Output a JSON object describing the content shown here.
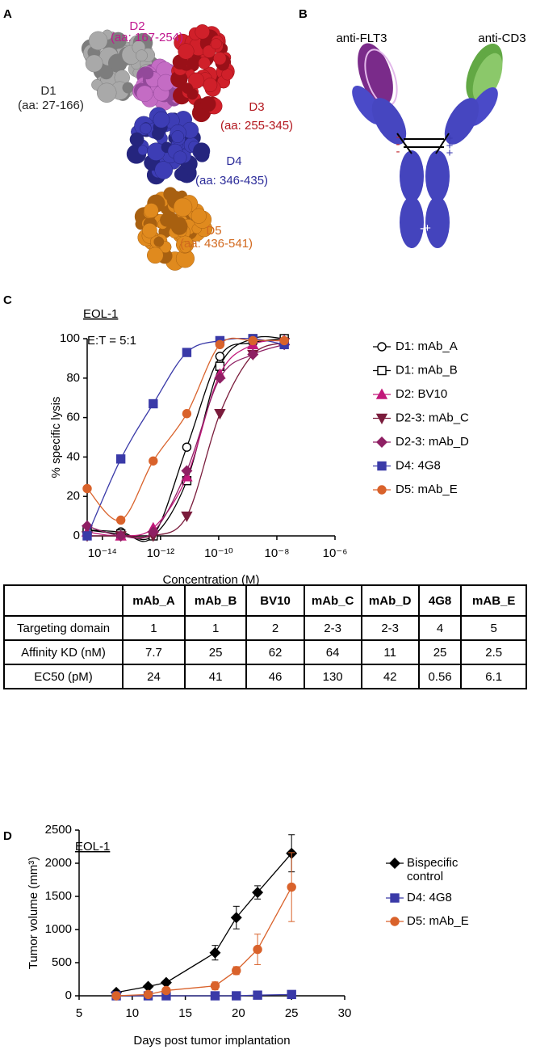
{
  "panel_labels": [
    "A",
    "B",
    "C",
    "D"
  ],
  "panel_a": {
    "domains": [
      {
        "name": "D1",
        "range": "(aa: 27-166)",
        "color": "#222222"
      },
      {
        "name": "D2",
        "range": "(aa: 167-254)",
        "color": "#c0198f"
      },
      {
        "name": "D3",
        "range": "(aa: 255-345)",
        "color": "#b3171e"
      },
      {
        "name": "D4",
        "range": "(aa: 346-435)",
        "color": "#2c2c9a"
      },
      {
        "name": "D5",
        "range": "(aa: 436-541)",
        "color": "#d2691e"
      }
    ]
  },
  "panel_b": {
    "labels": [
      "anti-FLT3",
      "anti-CD3"
    ],
    "negative_charges": [
      "-",
      "-",
      "-"
    ],
    "positive_charges": [
      "+",
      "+",
      "+"
    ],
    "fc_charge": "-+"
  },
  "chart_data": [
    {
      "type": "line",
      "title": "EOL-1",
      "annotation": "E:T = 5:1",
      "xlabel": "Concentration (M)",
      "ylabel": "% specific lysis",
      "xscale": "log",
      "xlim": [
        3e-15,
        1e-06
      ],
      "xticks": [
        {
          "value": 1e-14,
          "label": "10⁻¹⁴"
        },
        {
          "value": 1e-12,
          "label": "10⁻¹²"
        },
        {
          "value": 1e-10,
          "label": "10⁻¹⁰"
        },
        {
          "value": 1e-08,
          "label": "10⁻⁸"
        },
        {
          "value": 1e-06,
          "label": "10⁻⁶"
        }
      ],
      "ylim": [
        0,
        100
      ],
      "yticks": [
        0,
        20,
        40,
        60,
        80,
        100
      ],
      "legend": "right",
      "x": [
        3e-15,
        4.3e-14,
        5.6e-13,
        8e-12,
        1.1e-10,
        1.5e-09,
        1.8e-08
      ],
      "series": [
        {
          "name": "D1: mAb_A",
          "color": "#000000",
          "marker": "circle-open",
          "values": [
            3,
            2,
            0,
            45,
            91,
            98,
            100
          ]
        },
        {
          "name": "D1: mAb_B",
          "color": "#000000",
          "marker": "square-open",
          "values": [
            3,
            1,
            0,
            28,
            86,
            100,
            100
          ]
        },
        {
          "name": "D2: BV10",
          "color": "#c2187a",
          "marker": "triangle-up",
          "values": [
            2,
            0,
            4,
            30,
            82,
            97,
            99
          ]
        },
        {
          "name": "D2-3: mAb_C",
          "color": "#7a1c3c",
          "marker": "triangle-down",
          "values": [
            0,
            0,
            0,
            10,
            62,
            92,
            98
          ]
        },
        {
          "name": "D2-3: mAb_D",
          "color": "#8e1f63",
          "marker": "diamond",
          "values": [
            5,
            0,
            2,
            33,
            80,
            92,
            97
          ]
        },
        {
          "name": "D4: 4G8",
          "color": "#3a3aa8",
          "marker": "square",
          "values": [
            0,
            39,
            67,
            93,
            99,
            100,
            97
          ]
        },
        {
          "name": "D5: mAb_E",
          "color": "#d9622b",
          "marker": "circle",
          "values": [
            24,
            8,
            38,
            62,
            97,
            99,
            99
          ]
        }
      ]
    },
    {
      "type": "line",
      "title": "EOL-1",
      "xlabel": "Days post tumor implantation",
      "ylabel": "Tumor volume (mm³)",
      "xlim": [
        5,
        30
      ],
      "xticks": [
        5,
        10,
        15,
        20,
        25,
        30
      ],
      "ylim": [
        0,
        2500
      ],
      "yticks": [
        0,
        500,
        1000,
        1500,
        2000,
        2500
      ],
      "legend": "right",
      "x": [
        8.5,
        11.5,
        13.2,
        17.8,
        19.8,
        21.8,
        25
      ],
      "series": [
        {
          "name": "Bispecific control",
          "color": "#000000",
          "marker": "diamond",
          "values": [
            50,
            140,
            200,
            650,
            1180,
            1560,
            2150
          ],
          "errors": [
            10,
            20,
            20,
            110,
            170,
            100,
            280
          ]
        },
        {
          "name": "D4: 4G8",
          "color": "#3a3aa8",
          "marker": "square",
          "values": [
            0,
            0,
            0,
            0,
            0,
            10,
            20
          ],
          "errors": [
            0,
            0,
            0,
            0,
            0,
            5,
            10
          ]
        },
        {
          "name": "D5: mAb_E",
          "color": "#d9622b",
          "marker": "circle",
          "values": [
            0,
            20,
            80,
            150,
            380,
            700,
            1640
          ],
          "errors": [
            0,
            10,
            20,
            60,
            60,
            230,
            520
          ]
        }
      ]
    }
  ],
  "table": {
    "columns": [
      "mAb_A",
      "mAb_B",
      "BV10",
      "mAb_C",
      "mAb_D",
      "4G8",
      "mAB_E"
    ],
    "rows": [
      [
        "Targeting domain",
        1,
        1,
        2,
        "2-3",
        "2-3",
        4,
        5
      ],
      [
        "Affinity KD (nM)",
        7.7,
        25,
        62,
        64,
        11,
        25,
        2.5
      ],
      [
        "EC50 (pM)",
        24,
        41,
        46,
        130,
        42,
        0.56,
        6.1
      ]
    ]
  }
}
